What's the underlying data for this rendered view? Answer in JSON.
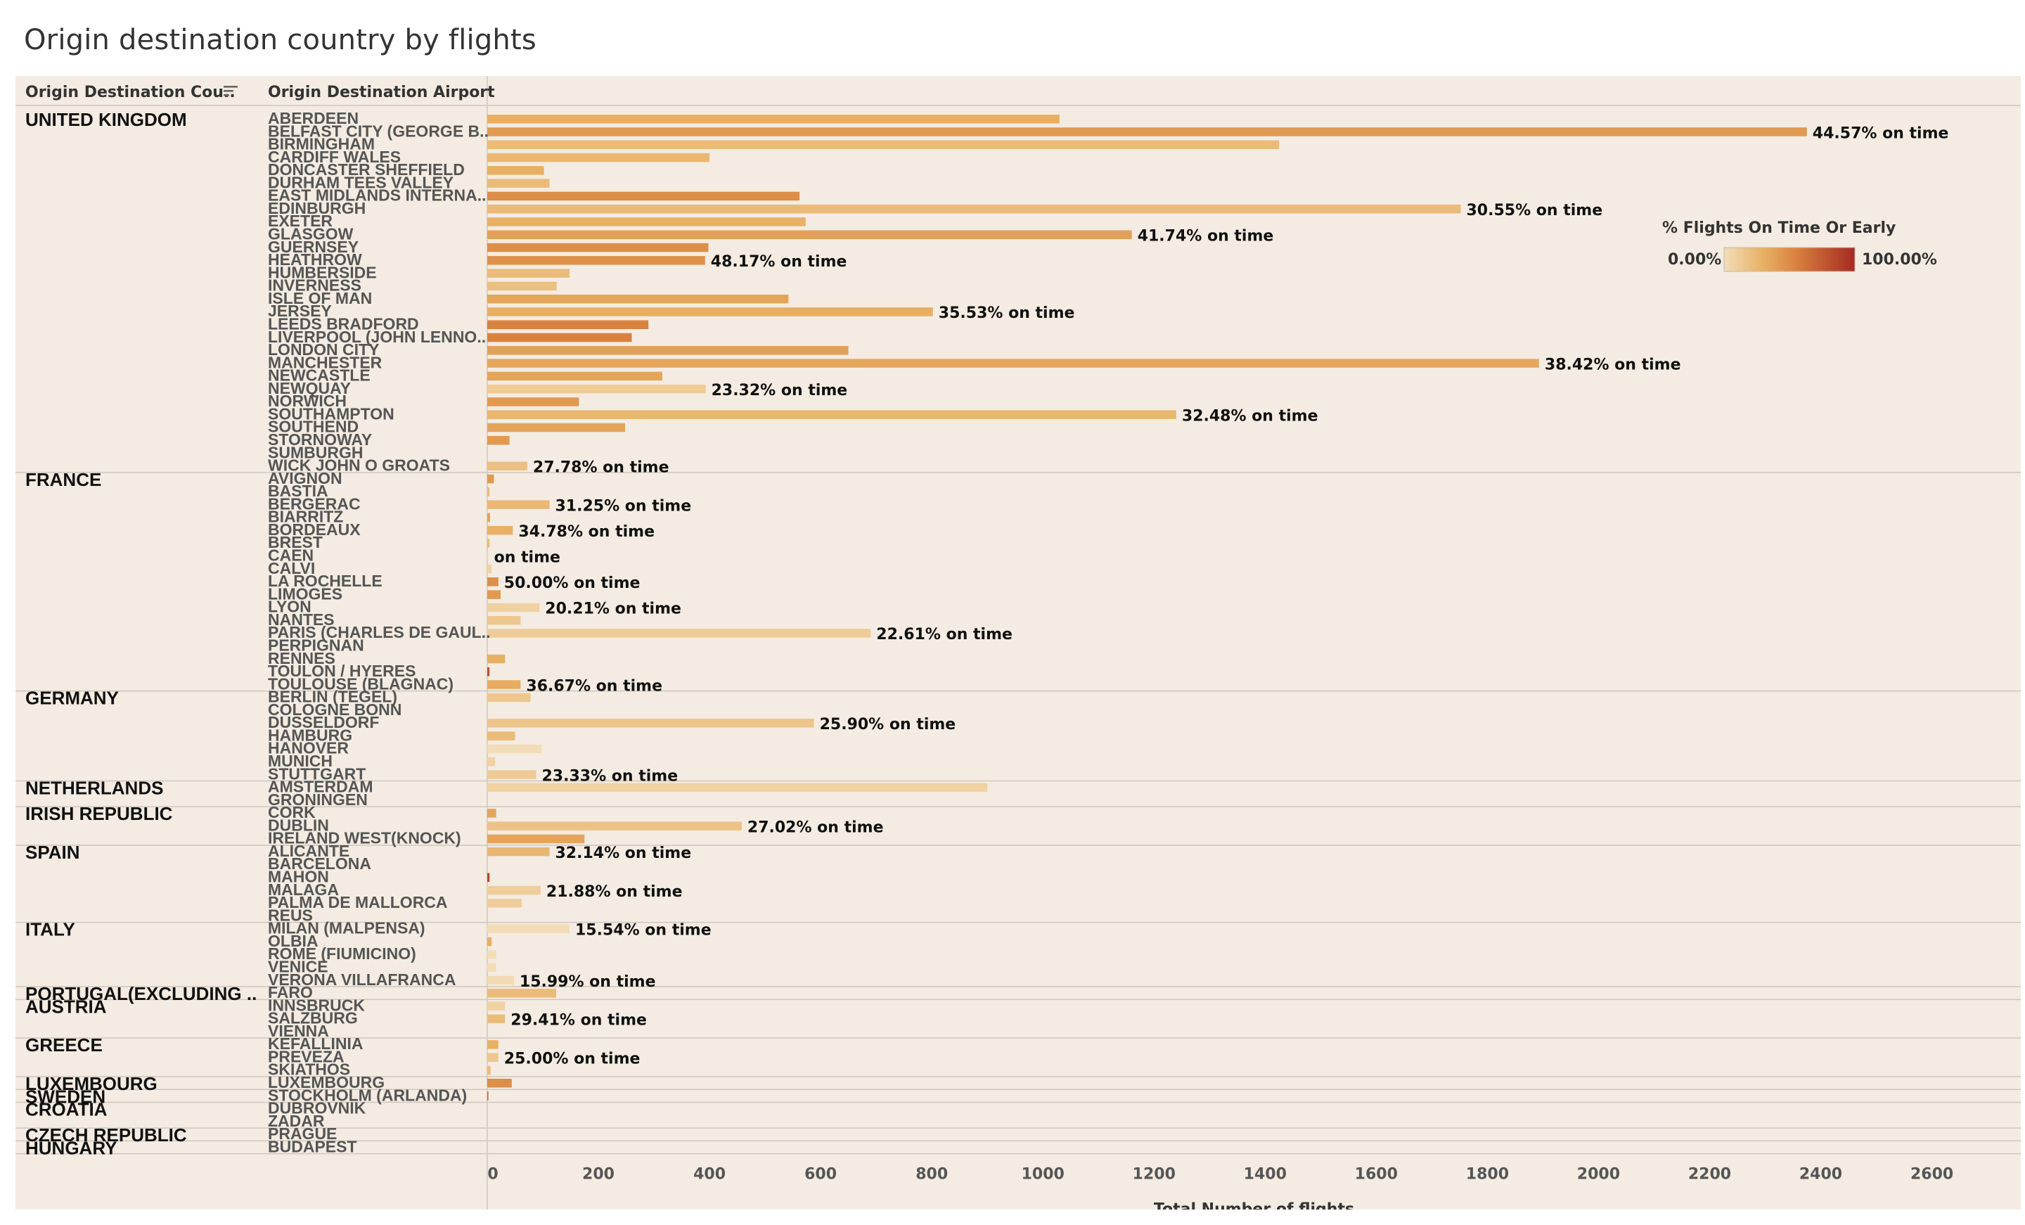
{
  "title": "Origin destination country by flights",
  "headers": {
    "country": "Origin Destination Cou..",
    "airport": "Origin Destination Airport",
    "sort_icon": "sort-descending-icon"
  },
  "legend": {
    "title": "% Flights On Time Or Early",
    "min_label": "0.00%",
    "max_label": "100.00%",
    "colors": [
      "#f2ddb8",
      "#e8b064",
      "#d9823f",
      "#a52a22"
    ]
  },
  "colors": {
    "background": "#f4ece2",
    "divider": "#cfc7bd"
  },
  "chart_data": {
    "type": "bar",
    "orientation": "horizontal",
    "xlabel": "Total Number of flights",
    "xlim": [
      0,
      2760
    ],
    "xticks": [
      0,
      200,
      400,
      600,
      800,
      1000,
      1200,
      1400,
      1600,
      1800,
      2000,
      2200,
      2400,
      2600
    ],
    "color_metric": "% Flights On Time Or Early",
    "groups": [
      {
        "country": "UNITED KINGDOM",
        "airports": [
          {
            "name": "ABERDEEN",
            "value": 1030,
            "pct": 35
          },
          {
            "name": "BELFAST CITY (GEORGE B..",
            "value": 2375,
            "pct": 44.57,
            "label": "44.57% on time"
          },
          {
            "name": "BIRMINGHAM",
            "value": 1425,
            "pct": 30
          },
          {
            "name": "CARDIFF WALES",
            "value": 400,
            "pct": 32
          },
          {
            "name": "DONCASTER SHEFFIELD",
            "value": 102,
            "pct": 35
          },
          {
            "name": "DURHAM TEES VALLEY",
            "value": 112,
            "pct": 30
          },
          {
            "name": "EAST MIDLANDS INTERNA..",
            "value": 562,
            "pct": 50
          },
          {
            "name": "EDINBURGH",
            "value": 1752,
            "pct": 30.55,
            "label": "30.55% on time"
          },
          {
            "name": "EXETER",
            "value": 573,
            "pct": 35
          },
          {
            "name": "GLASGOW",
            "value": 1160,
            "pct": 41.74,
            "label": "41.74% on time"
          },
          {
            "name": "GUERNSEY",
            "value": 398,
            "pct": 50
          },
          {
            "name": "HEATHROW",
            "value": 392,
            "pct": 48.17,
            "label": "48.17% on time"
          },
          {
            "name": "HUMBERSIDE",
            "value": 148,
            "pct": 30
          },
          {
            "name": "INVERNESS",
            "value": 125,
            "pct": 28
          },
          {
            "name": "ISLE OF MAN",
            "value": 542,
            "pct": 40
          },
          {
            "name": "JERSEY",
            "value": 802,
            "pct": 35.53,
            "label": "35.53% on time"
          },
          {
            "name": "LEEDS BRADFORD",
            "value": 290,
            "pct": 55
          },
          {
            "name": "LIVERPOOL (JOHN LENNO..",
            "value": 260,
            "pct": 55
          },
          {
            "name": "LONDON CITY",
            "value": 650,
            "pct": 42
          },
          {
            "name": "MANCHESTER",
            "value": 1893,
            "pct": 38.42,
            "label": "38.42% on time"
          },
          {
            "name": "NEWCASTLE",
            "value": 315,
            "pct": 40
          },
          {
            "name": "NEWQUAY",
            "value": 393,
            "pct": 23.32,
            "label": "23.32% on time"
          },
          {
            "name": "NORWICH",
            "value": 165,
            "pct": 45
          },
          {
            "name": "SOUTHAMPTON",
            "value": 1240,
            "pct": 32.48,
            "label": "32.48% on time"
          },
          {
            "name": "SOUTHEND",
            "value": 248,
            "pct": 40
          },
          {
            "name": "STORNOWAY",
            "value": 40,
            "pct": 45
          },
          {
            "name": "SUMBURGH",
            "value": 0,
            "pct": 40
          },
          {
            "name": "WICK JOHN O GROATS",
            "value": 72,
            "pct": 27.78,
            "label": "27.78% on time"
          }
        ]
      },
      {
        "country": "FRANCE",
        "airports": [
          {
            "name": "AVIGNON",
            "value": 12,
            "pct": 45
          },
          {
            "name": "BASTIA",
            "value": 4,
            "pct": 30
          },
          {
            "name": "BERGERAC",
            "value": 112,
            "pct": 31.25,
            "label": "31.25% on time"
          },
          {
            "name": "BIARRITZ",
            "value": 5,
            "pct": 40
          },
          {
            "name": "BORDEAUX",
            "value": 46,
            "pct": 34.78,
            "label": "34.78% on time"
          },
          {
            "name": "BREST",
            "value": 4,
            "pct": 30
          },
          {
            "name": "CAEN",
            "value": 2,
            "pct": 0,
            "label": " on time"
          },
          {
            "name": "CALVI",
            "value": 8,
            "pct": 20
          },
          {
            "name": "LA ROCHELLE",
            "value": 20,
            "pct": 50,
            "label": "50.00% on time"
          },
          {
            "name": "LIMOGES",
            "value": 24,
            "pct": 45
          },
          {
            "name": "LYON",
            "value": 94,
            "pct": 20.21,
            "label": "20.21% on time"
          },
          {
            "name": "NANTES",
            "value": 60,
            "pct": 25
          },
          {
            "name": "PARIS (CHARLES DE GAUL..",
            "value": 690,
            "pct": 22.61,
            "label": "22.61% on time"
          },
          {
            "name": "PERPIGNAN",
            "value": 0,
            "pct": 30
          },
          {
            "name": "RENNES",
            "value": 32,
            "pct": 35
          },
          {
            "name": "TOULON / HYERES",
            "value": 4,
            "pct": 80
          },
          {
            "name": "TOULOUSE (BLAGNAC)",
            "value": 60,
            "pct": 36.67,
            "label": "36.67% on time"
          }
        ]
      },
      {
        "country": "GERMANY",
        "airports": [
          {
            "name": "BERLIN (TEGEL)",
            "value": 78,
            "pct": 25
          },
          {
            "name": "COLOGNE BONN",
            "value": 0,
            "pct": 30
          },
          {
            "name": "DUSSELDORF",
            "value": 588,
            "pct": 25.9,
            "label": "25.90% on time"
          },
          {
            "name": "HAMBURG",
            "value": 50,
            "pct": 30
          },
          {
            "name": "HANOVER",
            "value": 98,
            "pct": 15
          },
          {
            "name": "MUNICH",
            "value": 14,
            "pct": 20
          },
          {
            "name": "STUTTGART",
            "value": 88,
            "pct": 23.33,
            "label": "23.33% on time"
          }
        ]
      },
      {
        "country": "NETHERLANDS",
        "airports": [
          {
            "name": "AMSTERDAM",
            "value": 900,
            "pct": 20
          },
          {
            "name": "GRONINGEN",
            "value": 0,
            "pct": 20
          }
        ]
      },
      {
        "country": "IRISH REPUBLIC",
        "airports": [
          {
            "name": "CORK",
            "value": 16,
            "pct": 40
          },
          {
            "name": "DUBLIN",
            "value": 458,
            "pct": 27.02,
            "label": "27.02% on time"
          },
          {
            "name": "IRELAND WEST(KNOCK)",
            "value": 175,
            "pct": 40
          }
        ]
      },
      {
        "country": "SPAIN",
        "airports": [
          {
            "name": "ALICANTE",
            "value": 112,
            "pct": 32.14,
            "label": "32.14% on time"
          },
          {
            "name": "BARCELONA",
            "value": 0,
            "pct": 30
          },
          {
            "name": "MAHON",
            "value": 4,
            "pct": 85
          },
          {
            "name": "MALAGA",
            "value": 96,
            "pct": 21.88,
            "label": "21.88% on time"
          },
          {
            "name": "PALMA DE MALLORCA",
            "value": 62,
            "pct": 22
          },
          {
            "name": "REUS",
            "value": 0,
            "pct": 30
          }
        ]
      },
      {
        "country": "ITALY",
        "airports": [
          {
            "name": "MILAN (MALPENSA)",
            "value": 148,
            "pct": 15.54,
            "label": "15.54% on time"
          },
          {
            "name": "OLBIA",
            "value": 8,
            "pct": 35
          },
          {
            "name": "ROME (FIUMICINO)",
            "value": 16,
            "pct": 15
          },
          {
            "name": "VENICE",
            "value": 16,
            "pct": 15
          },
          {
            "name": "VERONA VILLAFRANCA",
            "value": 48,
            "pct": 15.99,
            "label": "15.99% on time"
          }
        ]
      },
      {
        "country": "PORTUGAL(EXCLUDING ..",
        "airports": [
          {
            "name": "FARO",
            "value": 124,
            "pct": 30
          }
        ]
      },
      {
        "country": "AUSTRIA",
        "airports": [
          {
            "name": "INNSBRUCK",
            "value": 32,
            "pct": 20
          },
          {
            "name": "SALZBURG",
            "value": 32,
            "pct": 29.41,
            "label": "29.41% on time"
          },
          {
            "name": "VIENNA",
            "value": 0,
            "pct": 30
          }
        ]
      },
      {
        "country": "GREECE",
        "airports": [
          {
            "name": "KEFALLINIA",
            "value": 20,
            "pct": 35
          },
          {
            "name": "PREVEZA",
            "value": 20,
            "pct": 25,
            "label": "25.00% on time"
          },
          {
            "name": "SKIATHOS",
            "value": 6,
            "pct": 30
          }
        ]
      },
      {
        "country": "LUXEMBOURG",
        "airports": [
          {
            "name": "LUXEMBOURG",
            "value": 44,
            "pct": 50
          }
        ]
      },
      {
        "country": "SWEDEN",
        "airports": [
          {
            "name": "STOCKHOLM (ARLANDA)",
            "value": 2,
            "pct": 70
          }
        ]
      },
      {
        "country": "CROATIA",
        "airports": [
          {
            "name": "DUBROVNIK",
            "value": 0,
            "pct": 30
          },
          {
            "name": "ZADAR",
            "value": 0,
            "pct": 30
          }
        ]
      },
      {
        "country": "CZECH REPUBLIC",
        "airports": [
          {
            "name": "PRAGUE",
            "value": 0,
            "pct": 30
          }
        ]
      },
      {
        "country": "HUNGARY",
        "airports": [
          {
            "name": "BUDAPEST",
            "value": 0,
            "pct": 30
          }
        ]
      }
    ]
  }
}
